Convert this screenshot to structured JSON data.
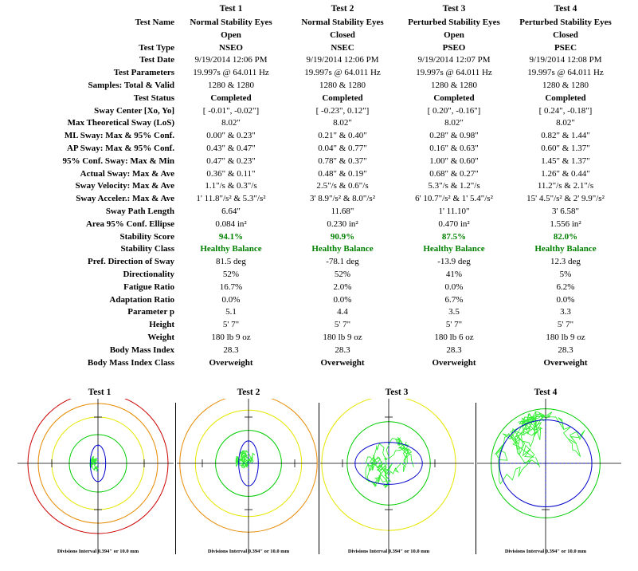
{
  "tests": [
    {
      "header": "Test 1",
      "name_line1": "Normal Stability Eyes",
      "name_line2": "Open"
    },
    {
      "header": "Test 2",
      "name_line1": "Normal Stability Eyes",
      "name_line2": "Closed"
    },
    {
      "header": "Test 3",
      "name_line1": "Perturbed Stability Eyes",
      "name_line2": "Open"
    },
    {
      "header": "Test 4",
      "name_line1": "Perturbed Stability Eyes",
      "name_line2": "Closed"
    }
  ],
  "rows": [
    {
      "label": "Test Name",
      "values": [
        "Normal Stability Eyes",
        "Normal Stability Eyes",
        "Perturbed Stability Eyes",
        "Perturbed Stability Eyes"
      ],
      "style": "bold"
    },
    {
      "label": "",
      "values": [
        "Open",
        "Closed",
        "Open",
        "Closed"
      ],
      "style": "bold"
    },
    {
      "label": "Test Type",
      "values": [
        "NSEO",
        "NSEC",
        "PSEO",
        "PSEC"
      ],
      "style": "bold"
    },
    {
      "label": "Test Date",
      "values": [
        "9/19/2014 12:06 PM",
        "9/19/2014 12:06 PM",
        "9/19/2014 12:07 PM",
        "9/19/2014 12:08 PM"
      ],
      "style": ""
    },
    {
      "label": "Test Parameters",
      "values": [
        "19.997s @ 64.011 Hz",
        "19.997s @ 64.011 Hz",
        "19.997s @ 64.011 Hz",
        "19.997s @ 64.011 Hz"
      ],
      "style": ""
    },
    {
      "label": "Samples: Total & Valid",
      "values": [
        "1280 & 1280",
        "1280 & 1280",
        "1280 & 1280",
        "1280 & 1280"
      ],
      "style": ""
    },
    {
      "label": "Test Status",
      "values": [
        "Completed",
        "Completed",
        "Completed",
        "Completed"
      ],
      "style": "bold"
    },
    {
      "label": "Sway Center [Xo, Yo]",
      "values": [
        "[   -0.01\",    -0.02\"]",
        "[   -0.23\",    0.12\"]",
        "[   0.20\",    -0.16\"]",
        "[   0.24\",    -0.18\"]"
      ],
      "style": ""
    },
    {
      "label": "Max Theoretical Sway (LoS)",
      "values": [
        "8.02\"",
        "8.02\"",
        "8.02\"",
        "8.02\""
      ],
      "style": ""
    },
    {
      "label": "ML Sway: Max & 95% Conf.",
      "values": [
        "0.00\"  &    0.23\"",
        "0.21\"  &    0.40\"",
        "0.28\"  &    0.98\"",
        "0.82\"  &    1.44\""
      ],
      "style": ""
    },
    {
      "label": "AP Sway: Max & 95% Conf.",
      "values": [
        "0.43\"  &    0.47\"",
        "0.04\"  &    0.77\"",
        "0.16\"  &    0.63\"",
        "0.60\"  &    1.37\""
      ],
      "style": ""
    },
    {
      "label": "95% Conf. Sway: Max & Min",
      "values": [
        "0.47\"  &    0.23\"",
        "0.78\"  &    0.37\"",
        "1.00\"  &    0.60\"",
        "1.45\"  &    1.37\""
      ],
      "style": ""
    },
    {
      "label": "Actual Sway: Max & Ave",
      "values": [
        "0.36\"  &    0.11\"",
        "0.48\"  &    0.19\"",
        "0.68\"  &    0.27\"",
        "1.26\"  &    0.44\""
      ],
      "style": ""
    },
    {
      "label": "Sway Velocity: Max & Ave",
      "values": [
        "1.1\"/s  &    0.3\"/s",
        "2.5\"/s  &    0.6\"/s",
        "5.3\"/s  &    1.2\"/s",
        "11.2\"/s  &    2.1\"/s"
      ],
      "style": ""
    },
    {
      "label": "Sway Acceler.: Max & Ave",
      "values": [
        "1'  11.8\"/s²  &    5.3\"/s²",
        "3'  8.9\"/s²  &    8.0\"/s²",
        "6'  10.7\"/s²  & 1'  5.4\"/s²",
        "15'  4.5\"/s²  & 2'  9.9\"/s²"
      ],
      "style": ""
    },
    {
      "label": "Sway Path Length",
      "values": [
        "6.64\"",
        "11.68\"",
        "1'  11.10\"",
        "3'  6.58\""
      ],
      "style": ""
    },
    {
      "label": "Area 95% Conf. Ellipse",
      "values": [
        "0.084 in²",
        "0.230 in²",
        "0.470 in²",
        "1.556 in²"
      ],
      "style": ""
    },
    {
      "label": "Stability Score",
      "values": [
        "94.1%",
        "90.9%",
        "87.5%",
        "82.0%"
      ],
      "style": "green"
    },
    {
      "label": "Stability Class",
      "values": [
        "Healthy Balance",
        "Healthy Balance",
        "Healthy Balance",
        "Healthy Balance"
      ],
      "style": "green"
    },
    {
      "label": "Pref. Direction of Sway",
      "values": [
        "81.5 deg",
        "-78.1 deg",
        "-13.9 deg",
        "12.3 deg"
      ],
      "style": ""
    },
    {
      "label": "Directionality",
      "values": [
        "52%",
        "52%",
        "41%",
        "5%"
      ],
      "style": ""
    },
    {
      "label": "Fatigue Ratio",
      "values": [
        "16.7%",
        "2.0%",
        "0.0%",
        "6.2%"
      ],
      "style": ""
    },
    {
      "label": "Adaptation Ratio",
      "values": [
        "0.0%",
        "0.0%",
        "6.7%",
        "0.0%"
      ],
      "style": ""
    },
    {
      "label": "Parameter p",
      "values": [
        "5.1",
        "4.4",
        "3.5",
        "3.3"
      ],
      "style": ""
    },
    {
      "label": "Height",
      "values": [
        "5'  7\"",
        "5'  7\"",
        "5'  7\"",
        "5'  7\""
      ],
      "style": ""
    },
    {
      "label": "Weight",
      "values": [
        "180 lb 9 oz",
        "180 lb 9 oz",
        "180 lb 6 oz",
        "180 lb 9 oz"
      ],
      "style": ""
    },
    {
      "label": "Body Mass Index",
      "values": [
        "28.3",
        "28.3",
        "28.3",
        "28.3"
      ],
      "style": ""
    },
    {
      "label": "Body Mass Index Class",
      "values": [
        "Overweight",
        "Overweight",
        "Overweight",
        "Overweight"
      ],
      "style": "bold"
    }
  ],
  "plots": [
    {
      "title": "Test 1",
      "footer": "Divisions Interval 0.394\" or 10.0 mm",
      "ring_colors": [
        "#00cc00",
        "#e6e600",
        "#e68a00",
        "#cc0000"
      ],
      "ellipse_rx": 0.11,
      "ellipse_ry": 0.26,
      "ellipse_angle": 81.5,
      "trace_spread": 0.12
    },
    {
      "title": "Test 2",
      "footer": "Divisions Interval 0.394\" or 10.0 mm",
      "ring_colors": [
        "#00cc00",
        "#e6e600",
        "#e68a00"
      ],
      "ellipse_rx": 0.14,
      "ellipse_ry": 0.32,
      "ellipse_angle": -78.1,
      "trace_spread": 0.2
    },
    {
      "title": "Test 3",
      "footer": "Divisions Interval 0.394\" or 10.0 mm",
      "ring_colors": [
        "#00cc00",
        "#e6e600"
      ],
      "ellipse_rx": 0.48,
      "ellipse_ry": 0.3,
      "ellipse_angle": -13.9,
      "trace_spread": 0.4
    },
    {
      "title": "Test 4",
      "footer": "Divisions Interval 0.394\" or 10.0 mm",
      "ring_colors": [
        "#00cc00"
      ],
      "ellipse_rx": 0.66,
      "ellipse_ry": 0.62,
      "ellipse_angle": 12.3,
      "trace_spread": 0.75
    }
  ],
  "colors": {
    "ellipse": "#0000cc",
    "trace": "#33ee33",
    "axis": "#000000",
    "ring_inner": "#00cc00"
  }
}
